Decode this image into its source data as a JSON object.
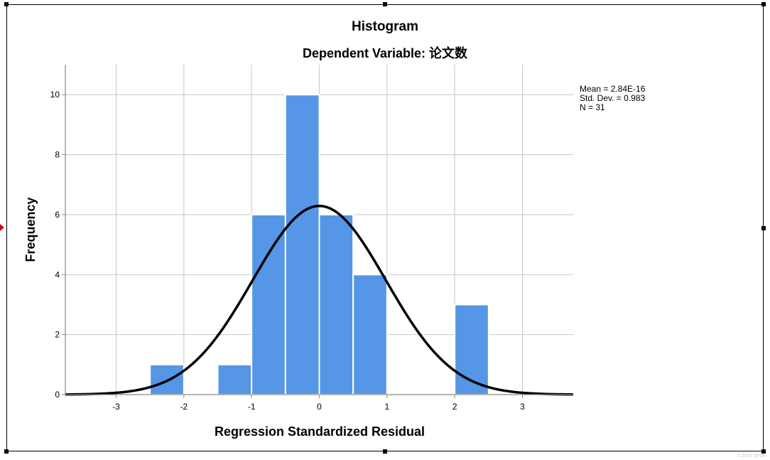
{
  "chart_data": {
    "type": "bar",
    "title": "Histogram",
    "subtitle": "Dependent Variable: 论文数",
    "xlabel": "Regression Standardized Residual",
    "ylabel": "Frequency",
    "xlim": [
      -3.75,
      3.75
    ],
    "ylim": [
      0,
      11
    ],
    "xticks": [
      -3,
      -2,
      -1,
      0,
      1,
      2,
      3
    ],
    "yticks": [
      0,
      2,
      4,
      6,
      8,
      10
    ],
    "grid": true,
    "bins": [
      {
        "from": -2.5,
        "to": -2.0,
        "count": 1
      },
      {
        "from": -1.5,
        "to": -1.0,
        "count": 1
      },
      {
        "from": -1.0,
        "to": -0.5,
        "count": 6
      },
      {
        "from": -0.5,
        "to": 0.0,
        "count": 10
      },
      {
        "from": 0.0,
        "to": 0.5,
        "count": 6
      },
      {
        "from": 0.5,
        "to": 1.0,
        "count": 4
      },
      {
        "from": 2.0,
        "to": 2.5,
        "count": 3
      }
    ],
    "normal_curve": {
      "mean": 0,
      "sd": 0.983,
      "n": 31,
      "bin_width": 0.5
    },
    "bar_color": "#5596e6",
    "curve_color": "#000000",
    "stats": [
      "Mean = 2.84E-16",
      "Std. Dev. = 0.983",
      "N = 31"
    ]
  },
  "watermark": "CSDN @fzw"
}
